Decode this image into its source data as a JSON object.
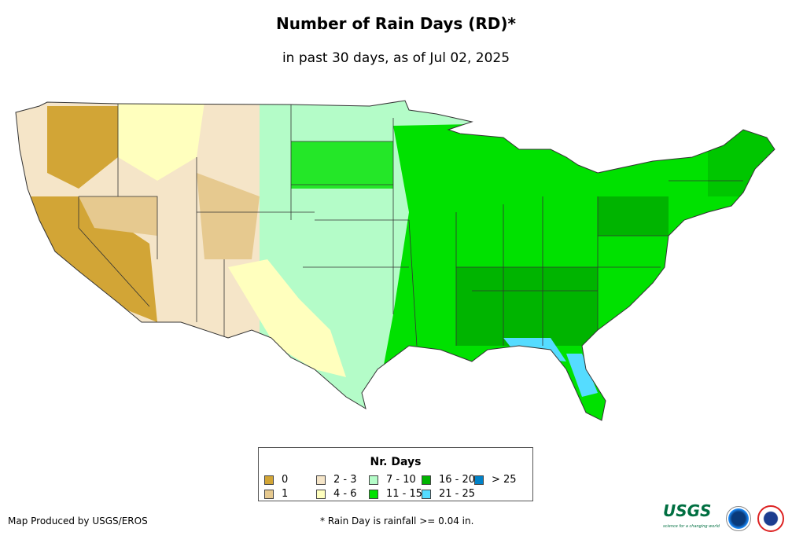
{
  "title": "Number of Rain Days (RD)*",
  "subtitle": "in past 30 days, as of Jul 02, 2025",
  "legend": {
    "title": "Nr. Days",
    "items": [
      {
        "label": "0",
        "color": "#d2a536"
      },
      {
        "label": "1",
        "color": "#e6c98f"
      },
      {
        "label": "2 - 3",
        "color": "#f5e5c8"
      },
      {
        "label": "4 - 6",
        "color": "#ffffbe"
      },
      {
        "label": "7 - 10",
        "color": "#b4fcc8"
      },
      {
        "label": "11 - 15",
        "color": "#00e100"
      },
      {
        "label": "16 - 20",
        "color": "#00b400"
      },
      {
        "label": "21 - 25",
        "color": "#55dcff"
      },
      {
        "label": "> 25",
        "color": "#0082c8"
      }
    ]
  },
  "credit": "Map Produced by USGS/EROS",
  "footnote": "* Rain Day is rainfall >= 0.04 in.",
  "logos": {
    "usgs": "USGS",
    "usgs_tagline": "science for a changing world",
    "noaa": "noaa",
    "nws": "National Weather Service"
  }
}
